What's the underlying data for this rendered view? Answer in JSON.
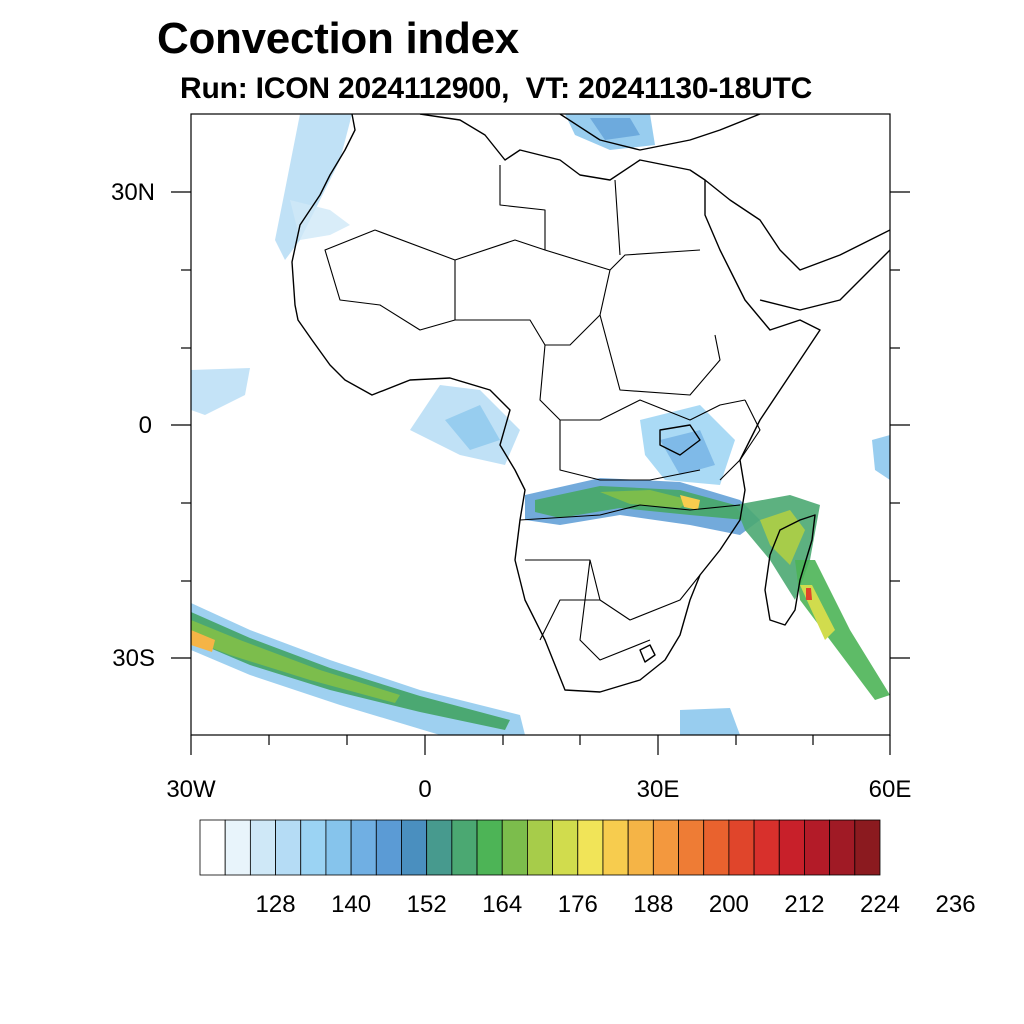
{
  "header": {
    "title": "Convection index",
    "subtitle": "Run: ICON 2024112900,  VT: 20241130-18UTC"
  },
  "map": {
    "lat_ticks": [
      "30N",
      "0",
      "30S"
    ],
    "lon_ticks": [
      "30W",
      "0",
      "30E",
      "60E"
    ],
    "extent": {
      "lon_min": -30,
      "lon_max": 60,
      "lat_min": -40,
      "lat_max": 40
    }
  },
  "colorbar": {
    "labels": [
      "128",
      "140",
      "152",
      "164",
      "176",
      "188",
      "200",
      "212",
      "224",
      "236"
    ],
    "colors": [
      "#ffffff",
      "#e8f4fb",
      "#cfe8f7",
      "#b5dcf5",
      "#9bd3f3",
      "#86c4ec",
      "#70afe3",
      "#5b9bd5",
      "#4a8fbf",
      "#479a8e",
      "#4ba872",
      "#4db456",
      "#7cbd4c",
      "#a7cc4a",
      "#d1dc4d",
      "#f1e458",
      "#f7cc4e",
      "#f5b446",
      "#f3983e",
      "#ee7c35",
      "#e9622e",
      "#e0452b",
      "#d8302c",
      "#c8202a",
      "#b31b28",
      "#a01a25",
      "#8b1a1f"
    ]
  }
}
